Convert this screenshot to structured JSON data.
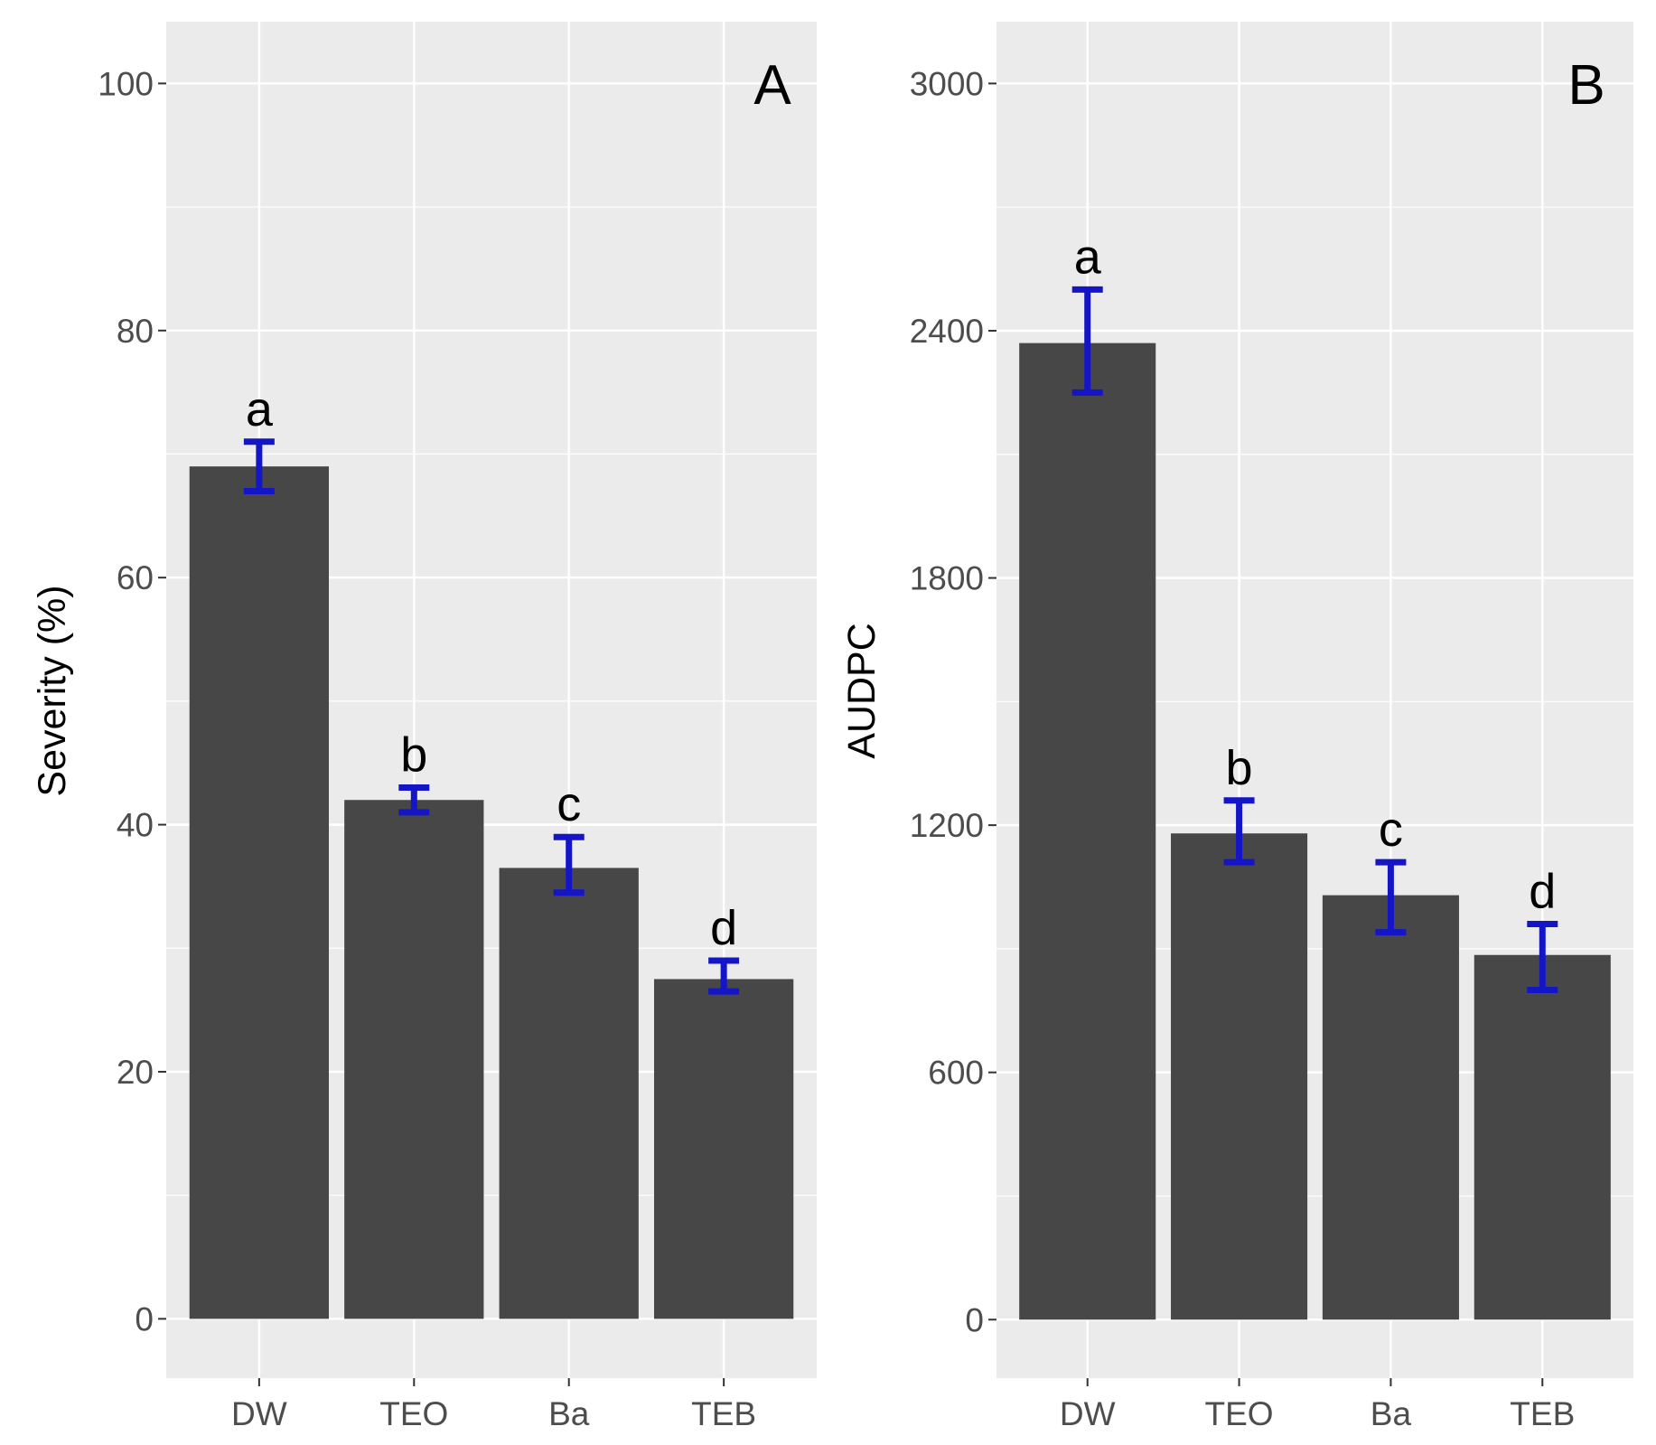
{
  "colors": {
    "panel_background": "#ebebeb",
    "grid": "#ffffff",
    "bar_fill": "#474747",
    "error_bar": "#1515c8",
    "tick_text": "#4d4d4d",
    "tick_mark": "#333333",
    "text": "#000000"
  },
  "chart_data": [
    {
      "type": "bar",
      "panel_tag": "A",
      "ylabel": "Severity (%)",
      "xlabel": "",
      "categories": [
        "DW",
        "TEO",
        "Ba",
        "TEB"
      ],
      "values": [
        69,
        42,
        36.5,
        27.5
      ],
      "error_low": [
        67,
        41,
        34.5,
        26.5
      ],
      "error_high": [
        71,
        43,
        39,
        29
      ],
      "group_letters": [
        "a",
        "b",
        "c",
        "d"
      ],
      "ylim": [
        -4.8,
        105
      ],
      "yticks": [
        0,
        20,
        40,
        60,
        80,
        100
      ],
      "ytick_labels": [
        "0",
        "20",
        "40",
        "60",
        "80",
        "100"
      ],
      "grid": true
    },
    {
      "type": "bar",
      "panel_tag": "B",
      "ylabel": "AUDPC",
      "xlabel": "",
      "categories": [
        "DW",
        "TEO",
        "Ba",
        "TEB"
      ],
      "values": [
        2370,
        1180,
        1030,
        885
      ],
      "error_low": [
        2250,
        1110,
        940,
        800
      ],
      "error_high": [
        2500,
        1260,
        1110,
        960
      ],
      "group_letters": [
        "a",
        "b",
        "c",
        "d"
      ],
      "ylim": [
        -142,
        3150
      ],
      "yticks": [
        0,
        600,
        1200,
        1800,
        2400,
        3000
      ],
      "ytick_labels": [
        "0",
        "600",
        "1200",
        "1800",
        "2400",
        "3000"
      ],
      "grid": true
    }
  ]
}
